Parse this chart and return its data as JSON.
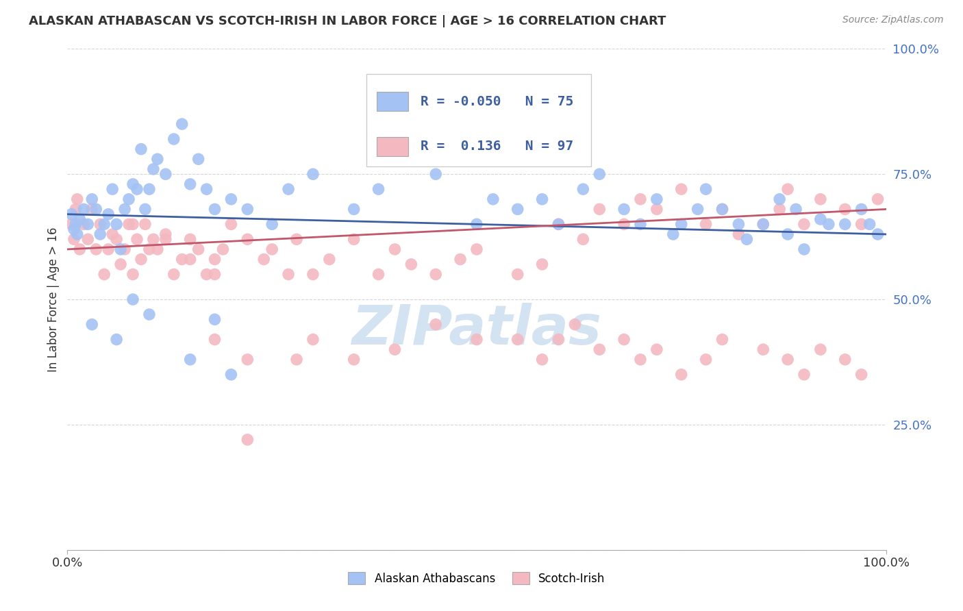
{
  "title": "ALASKAN ATHABASCAN VS SCOTCH-IRISH IN LABOR FORCE | AGE > 16 CORRELATION CHART",
  "source": "Source: ZipAtlas.com",
  "ylabel": "In Labor Force | Age > 16",
  "blue_label": "Alaskan Athabascans",
  "pink_label": "Scotch-Irish",
  "blue_R": -0.05,
  "pink_R": 0.136,
  "blue_N": 75,
  "pink_N": 97,
  "blue_color": "#a4c2f4",
  "pink_color": "#f4b8c1",
  "blue_line_color": "#3d5fa0",
  "pink_line_color": "#c0576a",
  "background_color": "#ffffff",
  "watermark": "ZIPatlas",
  "watermark_color": "#d0e0f0",
  "grid_color": "#cccccc",
  "tick_color_right": "#4472c4",
  "ytick_labels": [
    "",
    "25.0%",
    "50.0%",
    "75.0%",
    "100.0%"
  ],
  "xtick_labels": [
    "0.0%",
    "100.0%"
  ],
  "blue_x": [
    0.5,
    0.8,
    1.0,
    1.2,
    1.5,
    2.0,
    2.5,
    3.0,
    3.5,
    4.0,
    4.5,
    5.0,
    5.5,
    6.0,
    6.5,
    7.0,
    7.5,
    8.0,
    8.5,
    9.0,
    9.5,
    10.0,
    10.5,
    11.0,
    12.0,
    13.0,
    14.0,
    15.0,
    16.0,
    17.0,
    18.0,
    20.0,
    22.0,
    25.0,
    27.0,
    30.0,
    35.0,
    38.0,
    42.0,
    45.0,
    50.0,
    52.0,
    55.0,
    58.0,
    60.0,
    63.0,
    65.0,
    68.0,
    70.0,
    72.0,
    74.0,
    75.0,
    77.0,
    78.0,
    80.0,
    82.0,
    83.0,
    85.0,
    87.0,
    88.0,
    89.0,
    90.0,
    92.0,
    93.0,
    95.0,
    97.0,
    98.0,
    99.0,
    18.0,
    3.0,
    6.0,
    8.0,
    10.0,
    15.0,
    20.0
  ],
  "blue_y": [
    67.0,
    64.0,
    65.0,
    63.0,
    66.0,
    68.0,
    65.0,
    70.0,
    68.0,
    63.0,
    65.0,
    67.0,
    72.0,
    65.0,
    60.0,
    68.0,
    70.0,
    73.0,
    72.0,
    80.0,
    68.0,
    72.0,
    76.0,
    78.0,
    75.0,
    82.0,
    85.0,
    73.0,
    78.0,
    72.0,
    68.0,
    70.0,
    68.0,
    65.0,
    72.0,
    75.0,
    68.0,
    72.0,
    78.0,
    75.0,
    65.0,
    70.0,
    68.0,
    70.0,
    65.0,
    72.0,
    75.0,
    68.0,
    65.0,
    70.0,
    63.0,
    65.0,
    68.0,
    72.0,
    68.0,
    65.0,
    62.0,
    65.0,
    70.0,
    63.0,
    68.0,
    60.0,
    66.0,
    65.0,
    65.0,
    68.0,
    65.0,
    63.0,
    46.0,
    45.0,
    42.0,
    50.0,
    47.0,
    38.0,
    35.0
  ],
  "pink_x": [
    0.5,
    0.8,
    1.0,
    1.2,
    1.5,
    2.0,
    2.5,
    3.0,
    3.5,
    4.0,
    4.5,
    5.0,
    5.5,
    6.0,
    6.5,
    7.0,
    7.5,
    8.0,
    8.5,
    9.0,
    9.5,
    10.0,
    10.5,
    11.0,
    12.0,
    13.0,
    14.0,
    15.0,
    16.0,
    17.0,
    18.0,
    19.0,
    20.0,
    22.0,
    24.0,
    25.0,
    27.0,
    28.0,
    30.0,
    32.0,
    35.0,
    38.0,
    40.0,
    42.0,
    45.0,
    48.0,
    50.0,
    55.0,
    58.0,
    60.0,
    63.0,
    65.0,
    68.0,
    70.0,
    72.0,
    75.0,
    78.0,
    80.0,
    82.0,
    85.0,
    87.0,
    88.0,
    90.0,
    92.0,
    95.0,
    97.0,
    99.0,
    55.0,
    58.0,
    60.0,
    62.0,
    65.0,
    68.0,
    70.0,
    72.0,
    75.0,
    78.0,
    80.0,
    85.0,
    88.0,
    90.0,
    92.0,
    95.0,
    97.0,
    28.0,
    30.0,
    35.0,
    40.0,
    45.0,
    50.0,
    18.0,
    22.0,
    8.0,
    12.0,
    15.0,
    18.0,
    22.0
  ],
  "pink_y": [
    65.0,
    62.0,
    68.0,
    70.0,
    60.0,
    65.0,
    62.0,
    68.0,
    60.0,
    65.0,
    55.0,
    60.0,
    63.0,
    62.0,
    57.0,
    60.0,
    65.0,
    55.0,
    62.0,
    58.0,
    65.0,
    60.0,
    62.0,
    60.0,
    63.0,
    55.0,
    58.0,
    62.0,
    60.0,
    55.0,
    58.0,
    60.0,
    65.0,
    62.0,
    58.0,
    60.0,
    55.0,
    62.0,
    55.0,
    58.0,
    62.0,
    55.0,
    60.0,
    57.0,
    55.0,
    58.0,
    60.0,
    55.0,
    57.0,
    65.0,
    62.0,
    68.0,
    65.0,
    70.0,
    68.0,
    72.0,
    65.0,
    68.0,
    63.0,
    65.0,
    68.0,
    72.0,
    65.0,
    70.0,
    68.0,
    65.0,
    70.0,
    42.0,
    38.0,
    42.0,
    45.0,
    40.0,
    42.0,
    38.0,
    40.0,
    35.0,
    38.0,
    42.0,
    40.0,
    38.0,
    35.0,
    40.0,
    38.0,
    35.0,
    38.0,
    42.0,
    38.0,
    40.0,
    45.0,
    42.0,
    42.0,
    38.0,
    65.0,
    62.0,
    58.0,
    55.0,
    22.0
  ]
}
